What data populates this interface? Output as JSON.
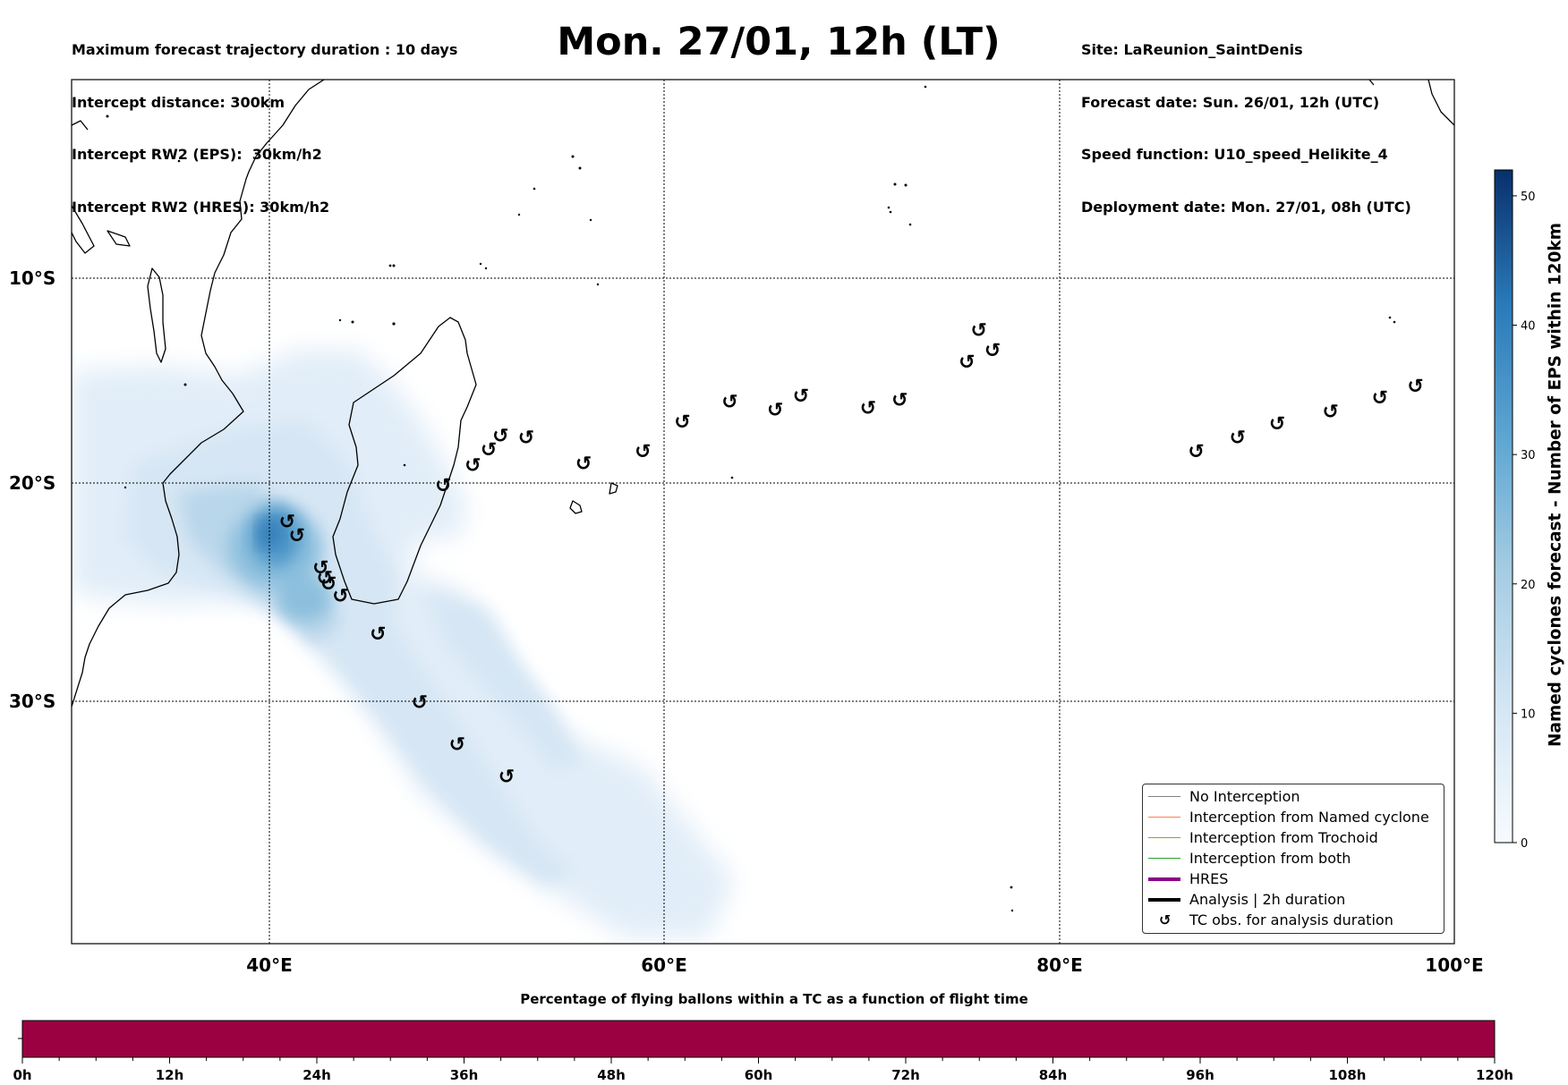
{
  "header_left": [
    "Maximum forecast trajectory duration : 10 days",
    "Intercept distance: 300km",
    "Intercept RW2 (EPS):  30km/h2",
    "Intercept RW2 (HRES): 30km/h2"
  ],
  "title": "Mon. 27/01, 12h (LT)",
  "header_right": [
    "Site: LaReunion_SaintDenis",
    "Forecast date: Sun. 26/01, 12h (UTC)",
    "Speed function: U10_speed_Helikite_4",
    "Deployment date: Mon. 27/01, 08h (UTC)"
  ],
  "map": {
    "lat_labels": [
      "10°S",
      "20°S",
      "30°S"
    ],
    "lon_labels": [
      "40°E",
      "60°E",
      "80°E",
      "100°E"
    ]
  },
  "colorbar": {
    "label": "Named cyclones forecast - Number of EPS within 120km",
    "ticks": [
      "0",
      "10",
      "20",
      "30",
      "40",
      "50"
    ],
    "min": 0,
    "max": 52
  },
  "legend": {
    "items": [
      {
        "label": "No Interception",
        "color": "#808080"
      },
      {
        "label": "Interception from Named cyclone",
        "color": "#ff7f50"
      },
      {
        "label": "Interception from Trochoid",
        "color": "#a0a020"
      },
      {
        "label": "Interception from both",
        "color": "#2ca02c"
      },
      {
        "label": "HRES",
        "color": "#8b008b"
      },
      {
        "label": "Analysis | 2h duration",
        "color": "#000000"
      },
      {
        "label": "TC obs. for analysis duration",
        "symbol": "cyclone-icon"
      }
    ]
  },
  "tc_observations": [
    {
      "lon": 40.9,
      "lat": -22.2
    },
    {
      "lon": 41.4,
      "lat": -22.9
    },
    {
      "lon": 42.6,
      "lat": -24.5
    },
    {
      "lon": 42.8,
      "lat": -25.0
    },
    {
      "lon": 43.0,
      "lat": -25.3
    },
    {
      "lon": 43.6,
      "lat": -25.9
    },
    {
      "lon": 45.5,
      "lat": -27.8
    },
    {
      "lon": 47.6,
      "lat": -31.2
    },
    {
      "lon": 49.5,
      "lat": -33.3
    },
    {
      "lon": 52.0,
      "lat": -34.9
    },
    {
      "lon": 48.8,
      "lat": -20.4
    },
    {
      "lon": 50.3,
      "lat": -19.4
    },
    {
      "lon": 51.1,
      "lat": -18.6
    },
    {
      "lon": 51.7,
      "lat": -17.9
    },
    {
      "lon": 53.0,
      "lat": -18.0
    },
    {
      "lon": 55.9,
      "lat": -19.3
    },
    {
      "lon": 58.9,
      "lat": -18.7
    },
    {
      "lon": 60.9,
      "lat": -17.2
    },
    {
      "lon": 63.3,
      "lat": -16.2
    },
    {
      "lon": 65.6,
      "lat": -16.6
    },
    {
      "lon": 66.9,
      "lat": -15.9
    },
    {
      "lon": 70.3,
      "lat": -16.5
    },
    {
      "lon": 71.9,
      "lat": -16.1
    },
    {
      "lon": 75.3,
      "lat": -14.2
    },
    {
      "lon": 75.9,
      "lat": -12.6
    },
    {
      "lon": 76.6,
      "lat": -13.6
    },
    {
      "lon": 86.9,
      "lat": -18.7
    },
    {
      "lon": 89.0,
      "lat": -18.0
    },
    {
      "lon": 91.0,
      "lat": -17.3
    },
    {
      "lon": 93.7,
      "lat": -16.7
    },
    {
      "lon": 96.2,
      "lat": -16.0
    },
    {
      "lon": 98.0,
      "lat": -15.4
    }
  ],
  "flight_bar": {
    "title": "Percentage of flying ballons within a TC as a function of flight time",
    "color": "#9b0040",
    "ticks": [
      "0h",
      "12h",
      "24h",
      "36h",
      "48h",
      "60h",
      "72h",
      "84h",
      "96h",
      "108h",
      "120h"
    ]
  }
}
